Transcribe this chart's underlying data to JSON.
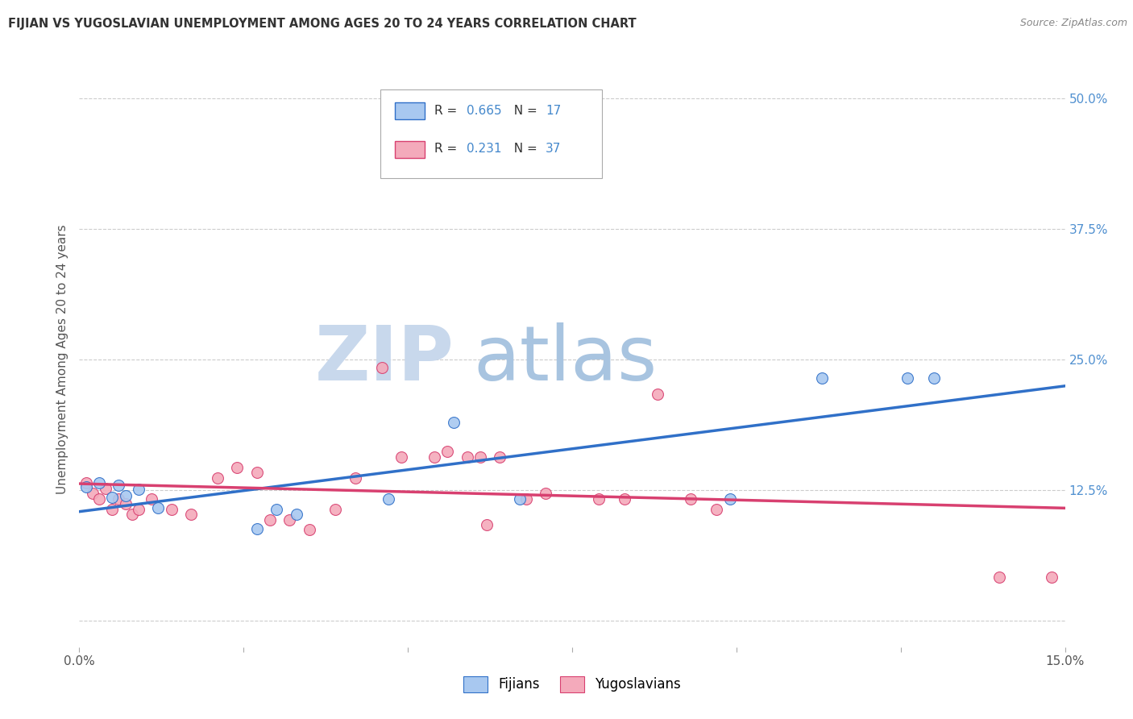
{
  "title": "FIJIAN VS YUGOSLAVIAN UNEMPLOYMENT AMONG AGES 20 TO 24 YEARS CORRELATION CHART",
  "source": "Source: ZipAtlas.com",
  "ylabel": "Unemployment Among Ages 20 to 24 years",
  "xlim": [
    0.0,
    0.15
  ],
  "ylim": [
    -0.025,
    0.525
  ],
  "yticks": [
    0.0,
    0.125,
    0.25,
    0.375,
    0.5
  ],
  "ytick_labels": [
    "",
    "12.5%",
    "25.0%",
    "37.5%",
    "50.0%"
  ],
  "xticks": [
    0.0,
    0.025,
    0.05,
    0.075,
    0.1,
    0.125,
    0.15
  ],
  "legend_fijian": "Fijians",
  "legend_yugoslavian": "Yugoslavians",
  "R_fijian": 0.665,
  "N_fijian": 17,
  "R_yugoslavian": 0.231,
  "N_yugoslavian": 37,
  "fijian_color": "#A8C8F0",
  "yugoslavian_color": "#F4AABB",
  "fijian_line_color": "#3070C8",
  "yugoslavian_line_color": "#D84070",
  "fijian_x": [
    0.001,
    0.003,
    0.005,
    0.006,
    0.007,
    0.009,
    0.012,
    0.027,
    0.03,
    0.033,
    0.047,
    0.057,
    0.067,
    0.099,
    0.113,
    0.126,
    0.13
  ],
  "fijian_y": [
    0.128,
    0.132,
    0.118,
    0.13,
    0.12,
    0.126,
    0.108,
    0.088,
    0.107,
    0.102,
    0.117,
    0.19,
    0.117,
    0.117,
    0.232,
    0.232,
    0.232
  ],
  "yugoslavian_x": [
    0.001,
    0.002,
    0.003,
    0.004,
    0.005,
    0.006,
    0.007,
    0.008,
    0.009,
    0.011,
    0.014,
    0.017,
    0.021,
    0.024,
    0.027,
    0.029,
    0.032,
    0.035,
    0.039,
    0.042,
    0.046,
    0.049,
    0.054,
    0.056,
    0.059,
    0.061,
    0.062,
    0.064,
    0.068,
    0.071,
    0.079,
    0.083,
    0.088,
    0.093,
    0.097,
    0.14,
    0.148
  ],
  "yugoslavian_y": [
    0.132,
    0.122,
    0.117,
    0.127,
    0.107,
    0.117,
    0.112,
    0.102,
    0.107,
    0.117,
    0.107,
    0.102,
    0.137,
    0.147,
    0.142,
    0.097,
    0.097,
    0.087,
    0.107,
    0.137,
    0.242,
    0.157,
    0.157,
    0.162,
    0.157,
    0.157,
    0.092,
    0.157,
    0.117,
    0.122,
    0.117,
    0.117,
    0.217,
    0.117,
    0.107,
    0.042,
    0.042
  ]
}
